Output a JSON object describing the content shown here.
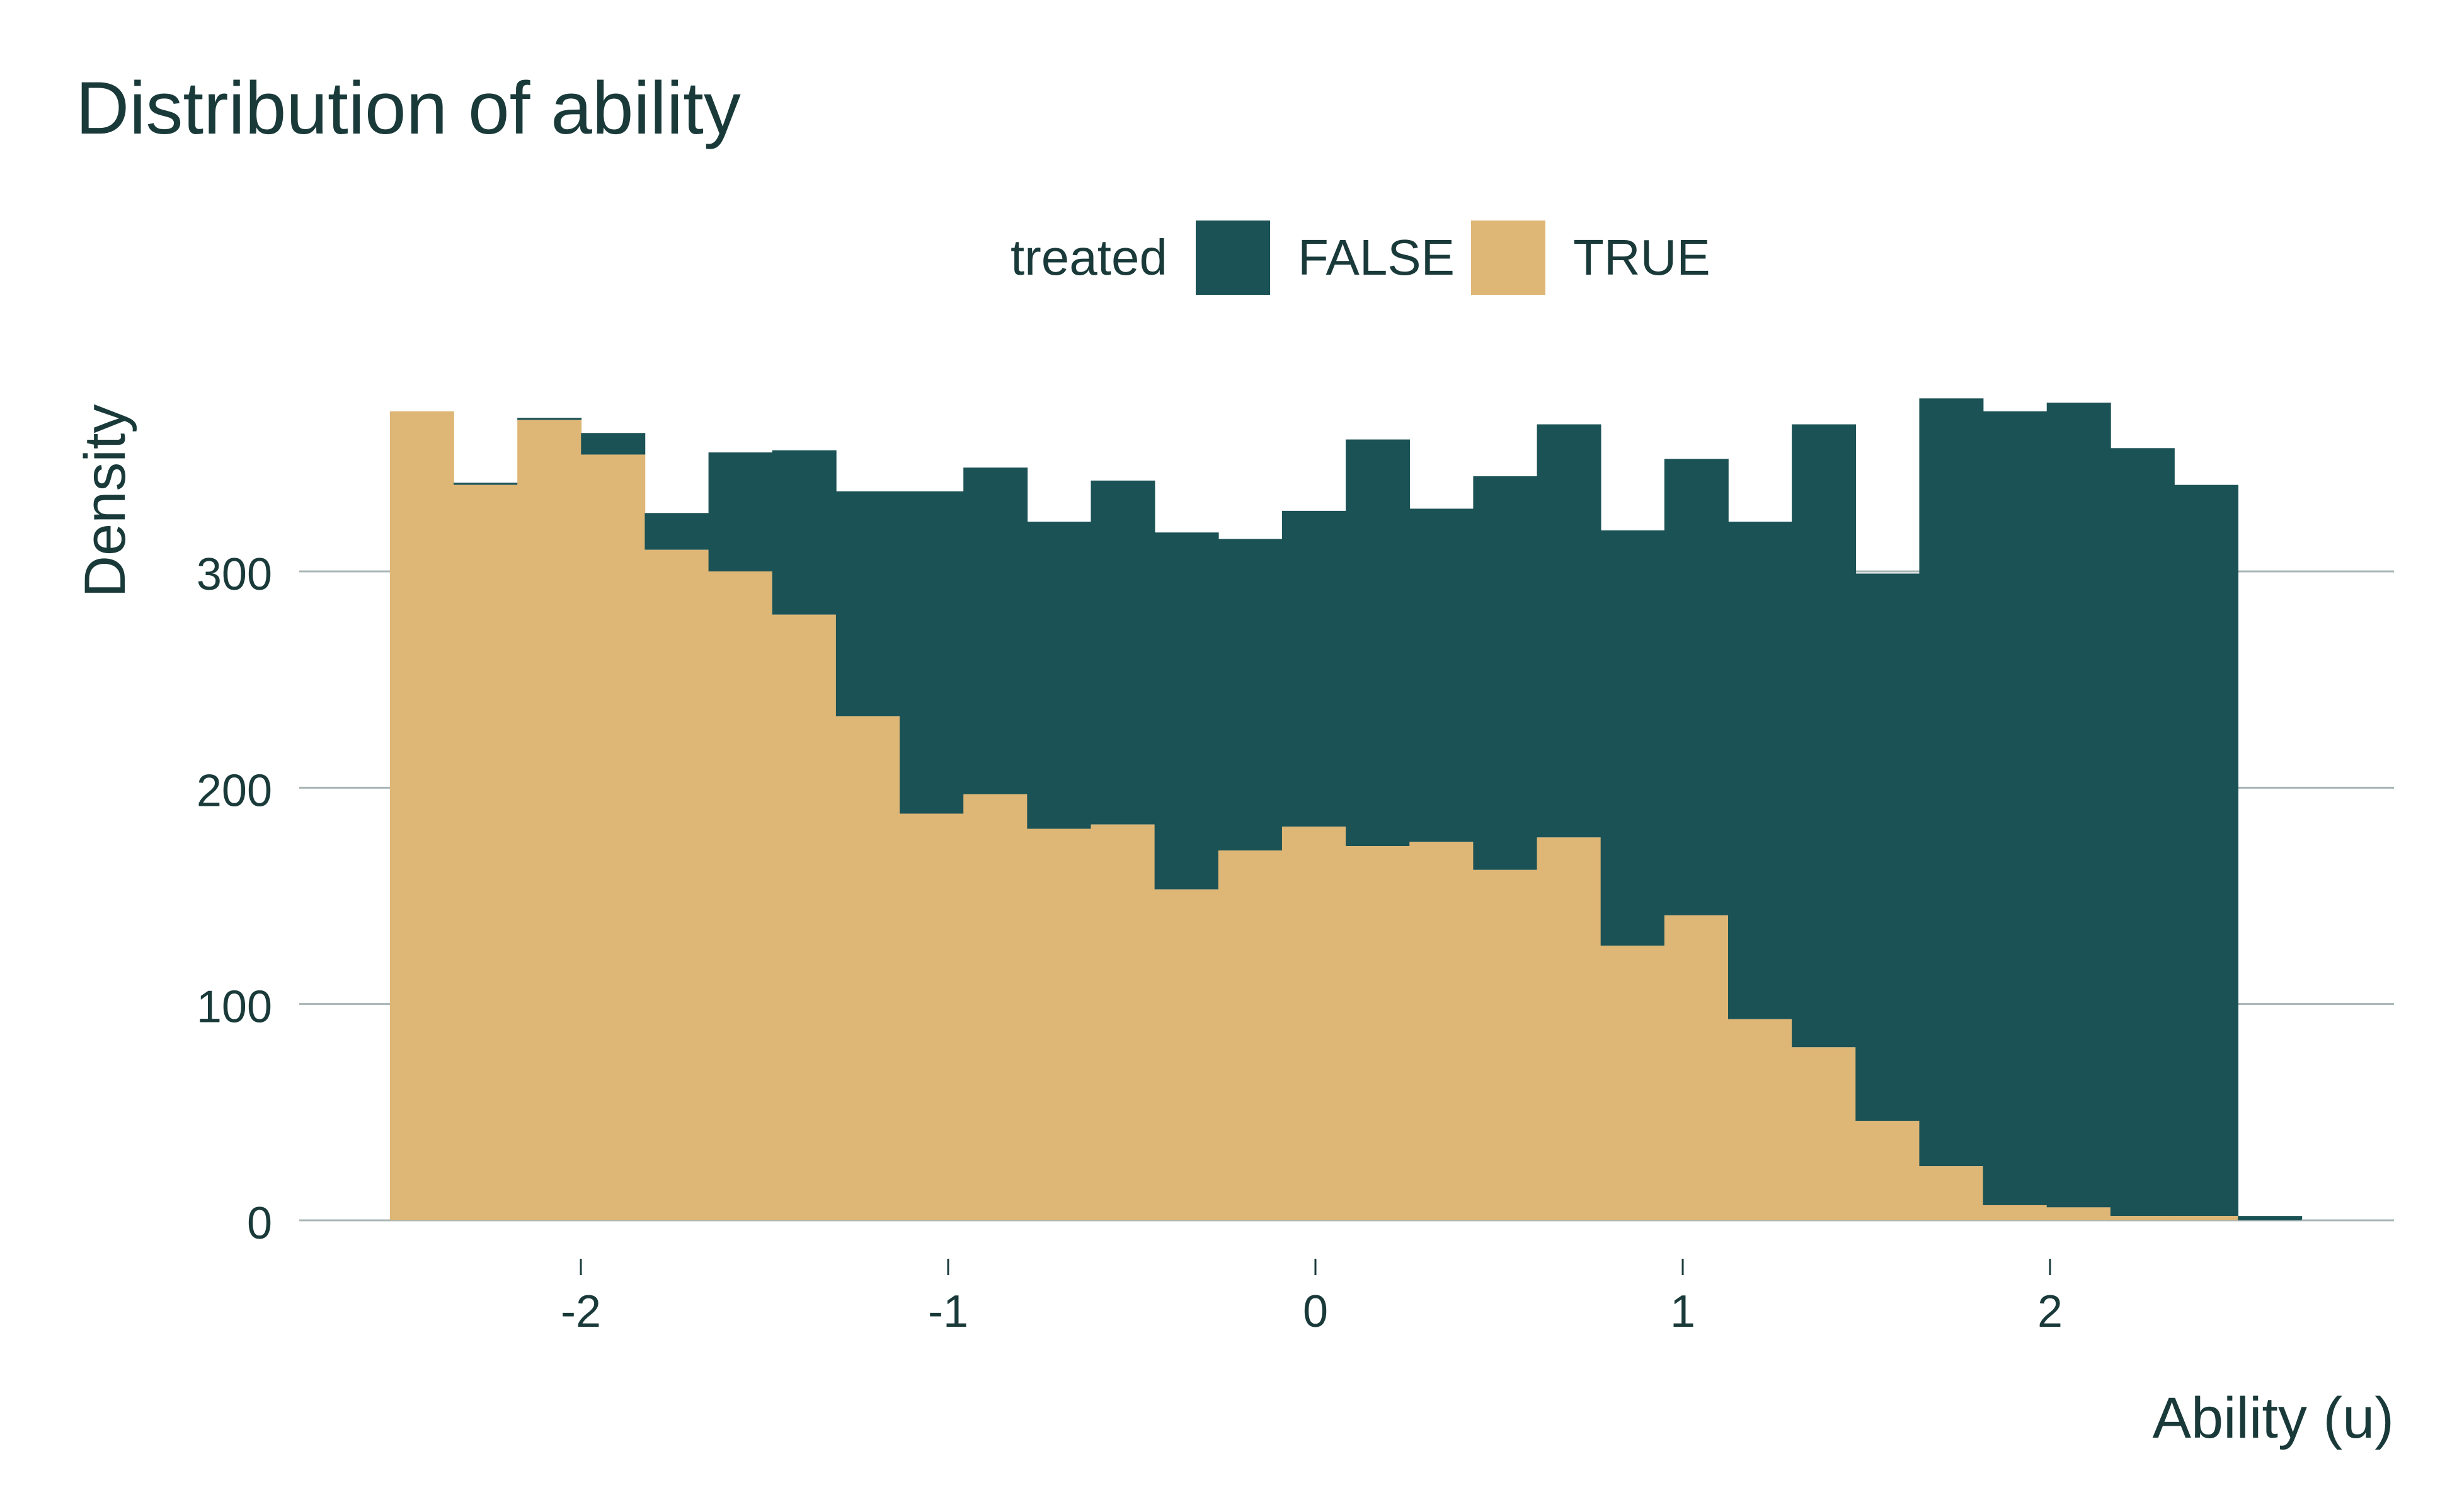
{
  "chart_data": {
    "type": "bar",
    "stacked": true,
    "title": "Distribution of ability",
    "xlabel": "Ability (u)",
    "ylabel": "Density",
    "legend": {
      "title": "treated",
      "position": "top",
      "entries": [
        "FALSE",
        "TRUE"
      ]
    },
    "x_ticks": [
      -2,
      -1,
      0,
      1,
      2
    ],
    "y_ticks": [
      0,
      100,
      200,
      300
    ],
    "xlim": [
      -2.75,
      2.9
    ],
    "ylim": [
      0,
      400
    ],
    "grid": "horizontal",
    "bin_start": -2.52,
    "bin_width": 0.1735,
    "series": [
      {
        "name": "TRUE",
        "color": "#deb676",
        "values": [
          374,
          340,
          370,
          354,
          310,
          300,
          280,
          233,
          188,
          197,
          181,
          183,
          153,
          171,
          182,
          173,
          175,
          162,
          177,
          127,
          141,
          93,
          80,
          46,
          25,
          7,
          6,
          2,
          2,
          0
        ]
      },
      {
        "name": "FALSE",
        "color": "#1b5255",
        "values": [
          0,
          1,
          1,
          10,
          17,
          55,
          76,
          104,
          149,
          151,
          142,
          159,
          165,
          144,
          146,
          188,
          154,
          182,
          191,
          192,
          211,
          230,
          288,
          253,
          355,
          367,
          372,
          355,
          338,
          2
        ]
      }
    ]
  }
}
